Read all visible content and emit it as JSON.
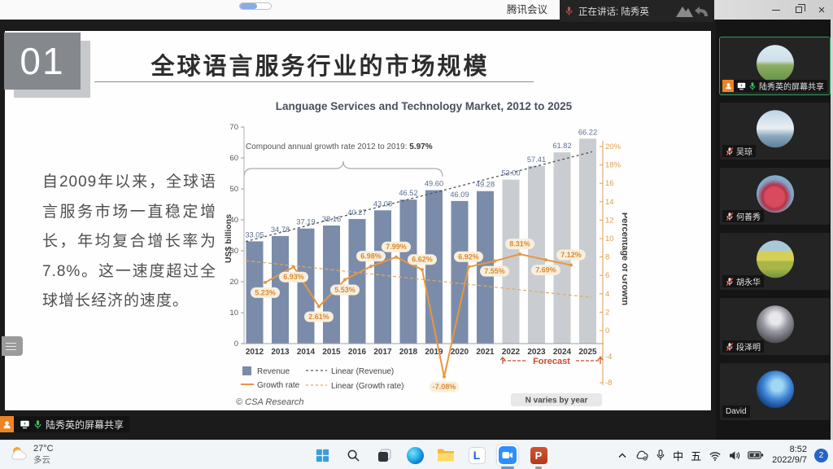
{
  "meeting": {
    "window_title": "腾讯会议",
    "speaking_toast": "正在讲话: 陆秀英",
    "share_toast": "陆秀英的屏幕共享",
    "participants": [
      {
        "name": "陆秀英的屏幕共享",
        "speaking": true,
        "sharing": true,
        "mic": "on",
        "avatar": "grass-field"
      },
      {
        "name": "吴琼",
        "speaking": false,
        "sharing": false,
        "mic": "muted",
        "avatar": "sea-sky"
      },
      {
        "name": "何善秀",
        "speaking": false,
        "sharing": false,
        "mic": "muted",
        "avatar": "rose"
      },
      {
        "name": "胡永华",
        "speaking": false,
        "sharing": false,
        "mic": "muted",
        "avatar": "yellow-fields"
      },
      {
        "name": "段泽明",
        "speaking": false,
        "sharing": false,
        "mic": "muted",
        "avatar": "ultraman"
      },
      {
        "name": "David",
        "speaking": false,
        "sharing": false,
        "mic": "none",
        "avatar": "blue-planet"
      }
    ]
  },
  "slide": {
    "section_number": "01",
    "title": "全球语言服务行业的市场规模",
    "paragraph": "自2009年以来，全球语言服务市场一直稳定增长，年均复合增长率为7.8%。这一速度超过全球增长经济的速度。"
  },
  "chart_data": {
    "type": "bar",
    "combo": true,
    "title": "Language Services and Technology Market, 2012 to 2025",
    "categories": [
      "2012",
      "2013",
      "2014",
      "2015",
      "2016",
      "2017",
      "2018",
      "2019",
      "2020",
      "2021",
      "2022",
      "2023",
      "2024",
      "2025"
    ],
    "series": [
      {
        "name": "Revenue",
        "type": "bar",
        "axis": "left",
        "unit": "US$ billions",
        "values": [
          33.05,
          34.78,
          37.19,
          38.16,
          40.27,
          43.08,
          46.52,
          49.6,
          46.09,
          49.28,
          53.0,
          57.41,
          61.82,
          66.22
        ],
        "forecast_start_index": 10
      },
      {
        "name": "Growth rate",
        "type": "line",
        "axis": "right",
        "unit": "%",
        "values": [
          5.23,
          6.93,
          2.61,
          5.53,
          6.98,
          7.99,
          6.62,
          -7.08,
          6.92,
          7.55,
          8.31,
          7.69,
          7.12
        ],
        "labels": [
          "5.23%",
          "6.93%",
          "2.61%",
          "5.53%",
          "6.98%",
          "7.99%",
          "6.62%",
          "-7.08%",
          "6.92%",
          "7.55%",
          "8.31%",
          "7.69%",
          "7.12%"
        ],
        "label_side": [
          "below",
          "below",
          "below",
          "below",
          "above",
          "above",
          "above",
          "below",
          "above",
          "below",
          "above",
          "below",
          "above"
        ]
      }
    ],
    "trendlines": [
      {
        "name": "Linear (Revenue)",
        "axis": "left",
        "from": 33.0,
        "to": 62.0
      },
      {
        "name": "Linear (Growth rate)",
        "axis": "right",
        "from": 7.6,
        "to": 3.6
      }
    ],
    "ylabel_left": "US$ billions",
    "ylabel_right": "Percentage of Growth",
    "left_ticks": [
      0,
      10,
      20,
      30,
      40,
      50,
      60,
      70
    ],
    "right_ticks": [
      "20%",
      "18%",
      "16",
      "14",
      "12",
      "10",
      "8",
      "6",
      "4",
      "2",
      "0",
      "-4",
      "-8"
    ],
    "annotations": {
      "cagr_text": "Compound annual growth rate 2012 to 2019:",
      "cagr_value": "5.97%",
      "forecast_label": "Forecast",
      "source": "© CSA Research",
      "note": "N varies by year"
    },
    "legend": [
      "Revenue",
      "Growth rate",
      "Linear (Revenue)",
      "Linear (Growth rate)"
    ],
    "legend_position": "bottom-left",
    "colors": {
      "bar": "#7b8caa",
      "bar_forecast": "#c9cdd2",
      "line": "#e8973f",
      "trend_dark": "#555555",
      "trend_orange": "#e2a95e",
      "forecast_red": "#cf4a2b",
      "axis_right": "#dca04f",
      "bar_label": "#5d6f92",
      "growth_label": "#dd8a2f"
    }
  },
  "taskbar": {
    "weather_temp": "27°C",
    "weather_cond": "多云",
    "ime_a": "中",
    "ime_b": "五",
    "time": "8:52",
    "date": "2022/9/7",
    "badge": "2"
  }
}
